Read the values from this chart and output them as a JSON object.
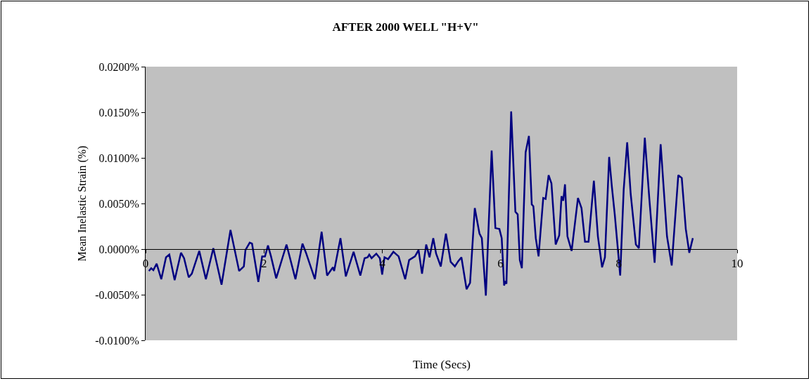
{
  "chart_data": {
    "type": "line",
    "title": "AFTER 2000 WELL \"H+V\"",
    "xlabel": "Time (Secs)",
    "ylabel": "Mean Inelastic Strain (%)",
    "xlim": [
      0,
      10
    ],
    "xticks": [
      0,
      2,
      4,
      6,
      8,
      10
    ],
    "ylim": [
      -0.01,
      0.02
    ],
    "yticks": [
      {
        "value": -0.01,
        "label": "-0.0100%"
      },
      {
        "value": -0.005,
        "label": "-0.0050%"
      },
      {
        "value": 0,
        "label": "0.0000%"
      },
      {
        "value": 0.005,
        "label": "0.0050%"
      },
      {
        "value": 0.01,
        "label": "0.0100%"
      },
      {
        "value": 0.015,
        "label": "0.0150%"
      },
      {
        "value": 0.02,
        "label": "0.0200%"
      }
    ],
    "marker": "none",
    "line_style": "solid",
    "series": [
      {
        "color": "#000080",
        "x": [
          0.056,
          0.095,
          0.131,
          0.187,
          0.265,
          0.345,
          0.401,
          0.491,
          0.598,
          0.65,
          0.729,
          0.781,
          0.907,
          1.019,
          1.145,
          1.284,
          1.435,
          1.581,
          1.661,
          1.688,
          1.76,
          1.799,
          1.906,
          1.97,
          2.018,
          2.069,
          2.12,
          2.208,
          2.382,
          2.533,
          2.652,
          2.711,
          2.862,
          2.976,
          3.068,
          3.166,
          3.187,
          3.294,
          3.385,
          3.516,
          3.63,
          3.702,
          3.754,
          3.781,
          3.82,
          3.9,
          3.96,
          3.999,
          4.039,
          4.099,
          4.189,
          4.277,
          4.388,
          4.455,
          4.554,
          4.614,
          4.673,
          4.744,
          4.8,
          4.863,
          4.911,
          4.99,
          5.077,
          5.157,
          5.228,
          5.288,
          5.339,
          5.426,
          5.485,
          5.565,
          5.644,
          5.684,
          5.752,
          5.85,
          5.913,
          5.981,
          6.02,
          6.061,
          6.08,
          6.1,
          6.18,
          6.251,
          6.29,
          6.326,
          6.361,
          6.424,
          6.48,
          6.528,
          6.555,
          6.596,
          6.643,
          6.722,
          6.762,
          6.813,
          6.861,
          6.932,
          6.992,
          7.031,
          7.06,
          7.09,
          7.131,
          7.202,
          7.309,
          7.369,
          7.428,
          7.488,
          7.578,
          7.646,
          7.717,
          7.765,
          7.836,
          7.883,
          7.931,
          8.023,
          8.082,
          8.141,
          8.201,
          8.288,
          8.339,
          8.439,
          8.517,
          8.577,
          8.605,
          8.707,
          8.814,
          8.894,
          9.005,
          9.064,
          9.132,
          9.191,
          9.251
        ],
        "values": [
          -0.0024,
          -0.0021,
          -0.0023,
          -0.0016,
          -0.0033,
          -0.0009,
          -0.0006,
          -0.0034,
          -0.0004,
          -0.001,
          -0.0031,
          -0.0027,
          -0.0002,
          -0.0033,
          0.0001,
          -0.0039,
          0.0021,
          -0.0024,
          -0.0019,
          -0.0001,
          0.0007,
          0.0006,
          -0.0036,
          -0.0008,
          -0.0008,
          0.0004,
          -0.0008,
          -0.0032,
          0.0005,
          -0.0033,
          0.0006,
          -0.0004,
          -0.0033,
          0.0019,
          -0.0029,
          -0.002,
          -0.0024,
          0.0012,
          -0.003,
          -0.0003,
          -0.0029,
          -0.001,
          -0.0009,
          -0.0006,
          -0.001,
          -0.0005,
          -0.001,
          -0.0028,
          -0.0009,
          -0.0011,
          -0.0003,
          -0.0008,
          -0.0033,
          -0.0012,
          -0.0008,
          -0.0001,
          -0.0027,
          0.0005,
          -0.0009,
          0.0012,
          -0.0005,
          -0.0019,
          0.0017,
          -0.0014,
          -0.0019,
          -0.0013,
          -0.0009,
          -0.0044,
          -0.0037,
          0.0045,
          0.0017,
          0.0012,
          -0.0051,
          0.0108,
          0.0023,
          0.0022,
          0.0012,
          -0.004,
          -0.0035,
          -0.0038,
          0.0151,
          0.0041,
          0.0038,
          -0.0012,
          -0.0021,
          0.0106,
          0.0124,
          0.0049,
          0.0047,
          0.0012,
          -0.0008,
          0.0056,
          0.0055,
          0.0081,
          0.0072,
          0.0005,
          0.0015,
          0.0058,
          0.0053,
          0.0071,
          0.0014,
          -0.0002,
          0.0056,
          0.0045,
          0.0008,
          0.0008,
          0.0075,
          0.0014,
          -0.002,
          -0.0009,
          0.0101,
          0.0068,
          0.0038,
          -0.0029,
          0.0065,
          0.0117,
          0.006,
          0.0005,
          0.0001,
          0.0122,
          0.0054,
          0.0006,
          -0.0015,
          0.0115,
          0.0014,
          -0.0018,
          0.0081,
          0.0078,
          0.0022,
          -0.0004,
          0.0012
        ]
      }
    ]
  }
}
